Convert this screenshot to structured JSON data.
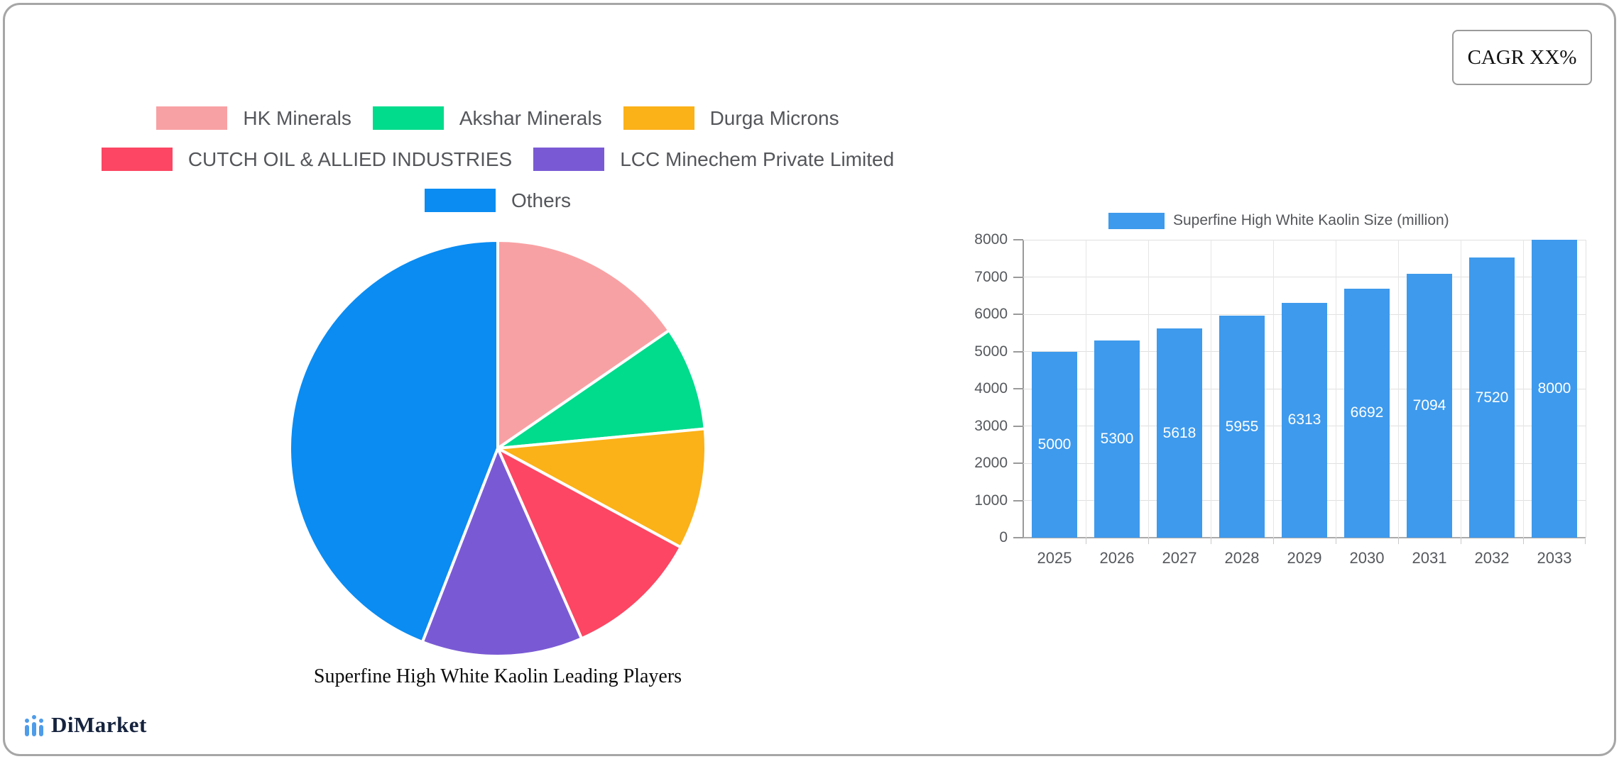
{
  "overlays": {
    "cagr_label": "CAGR XX%",
    "brand": "DiMarket"
  },
  "chart_data": [
    {
      "type": "pie",
      "title": "Superfine High White Kaolin Leading Players",
      "title_position": "bottom",
      "legend_position": "top",
      "labels": [
        "HK Minerals",
        "Akshar Minerals",
        "Durga Microns",
        "CUTCH OIL & ALLIED INDUSTRIES",
        "LCC Minechem Private Limited",
        "Others"
      ],
      "values": [
        15.4,
        8.1,
        9.4,
        10.5,
        12.5,
        44.1
      ],
      "colors": [
        "#F8A1A4",
        "#00DB8C",
        "#FBB118",
        "#FC4663",
        "#7A5AD4",
        "#0A8CF2"
      ],
      "legend_rows": [
        [
          0,
          1,
          2
        ],
        [
          3,
          4
        ],
        [
          5
        ]
      ],
      "start_angle_deg": 0,
      "slice_border_color": "#FFFFFF"
    },
    {
      "type": "bar",
      "legend": "Superfine High White Kaolin Size (million)",
      "legend_position": "top",
      "categories": [
        "2025",
        "2026",
        "2027",
        "2028",
        "2029",
        "2030",
        "2031",
        "2032",
        "2033"
      ],
      "values": [
        5000,
        5300,
        5618,
        5955,
        6313,
        6692,
        7094,
        7520,
        8000
      ],
      "bar_color": "#3E9AEC",
      "value_label_color": "#FFFFFF",
      "ylim": [
        0,
        8000
      ],
      "ytick_step": 1000,
      "grid": true
    }
  ]
}
